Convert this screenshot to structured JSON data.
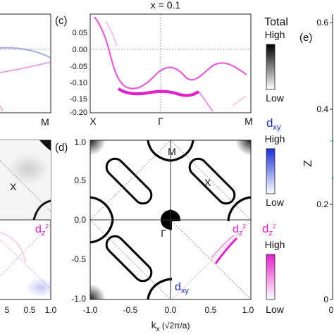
{
  "header": {
    "x_value": "x = 0.1"
  },
  "panel_labels": {
    "c": "(c)",
    "d": "(d)",
    "e": "(e)"
  },
  "panel_c": {
    "y_ticks": [
      "0.05",
      "0.00",
      "-0.05",
      "-0.10",
      "-0.15",
      "-0.20"
    ],
    "x_ticks": [
      "X",
      "Γ",
      "M"
    ]
  },
  "panel_left": {
    "m_label": "M",
    "x_label": "X"
  },
  "panel_d": {
    "y_ticks": [
      "1.0",
      "0.5",
      "0.0",
      "-0.5",
      "-1.0"
    ],
    "x_ticks": [
      "-1.0",
      "-0.5",
      "0.0",
      "0.5",
      "1.0"
    ],
    "x_axis_label": "k",
    "x_axis_sub": "x",
    "x_axis_unit": " (√2π/a)",
    "m_point": "M",
    "x_point": "X",
    "gamma_point": "Γ",
    "dz2_base": "d",
    "dz2_sub": "z",
    "dz2_sup": "2",
    "dxy_base": "d",
    "dxy_sub": "xy"
  },
  "bottom_left_ticks": [
    "5",
    "0.5",
    "1.0"
  ],
  "legend": {
    "total": {
      "title": "Total",
      "high": "High",
      "low": "Low",
      "color": "#000000"
    },
    "dxy": {
      "base": "d",
      "sub": "xy",
      "high": "High",
      "low": "Low",
      "color": "#1b2fd8"
    },
    "dz2": {
      "base": "d",
      "sub": "z",
      "sup": "2",
      "high": "High",
      "low": "Low",
      "color": "#e81ecb"
    }
  },
  "panel_e": {
    "y_axis_label": "Z",
    "y_ticks": [
      "0.6",
      "0.4",
      "0.2",
      "0"
    ],
    "x_tick": "0"
  }
}
